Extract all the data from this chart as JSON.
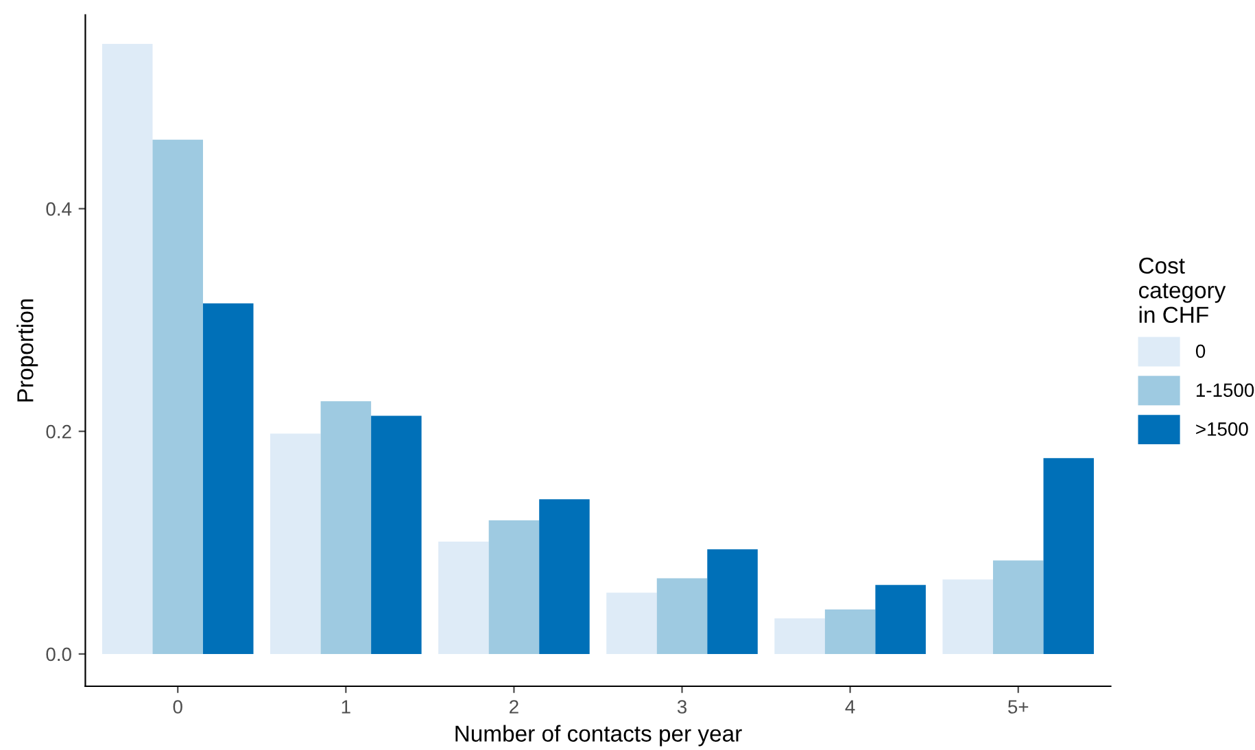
{
  "chart_data": {
    "type": "bar",
    "xlabel": "Number of contacts per year",
    "ylabel": "Proportion",
    "legend_title": "Cost\ncategory\nin CHF",
    "categories": [
      "0",
      "1",
      "2",
      "3",
      "4",
      "5+"
    ],
    "series": [
      {
        "name": "0",
        "color": "#deebf7",
        "values": [
          0.548,
          0.198,
          0.101,
          0.055,
          0.032,
          0.067
        ]
      },
      {
        "name": "1-1500",
        "color": "#9ecae1",
        "values": [
          0.462,
          0.227,
          0.12,
          0.068,
          0.04,
          0.084
        ]
      },
      {
        "name": ">1500",
        "color": "#0070b8",
        "values": [
          0.315,
          0.214,
          0.139,
          0.094,
          0.062,
          0.176
        ]
      }
    ],
    "ylim": [
      -0.029,
      0.574
    ],
    "yticks": [
      {
        "value": 0,
        "label": "0.0"
      },
      {
        "value": 0.2,
        "label": "0.2"
      },
      {
        "value": 0.4,
        "label": "0.4"
      }
    ],
    "grid": false,
    "legend": "right"
  }
}
